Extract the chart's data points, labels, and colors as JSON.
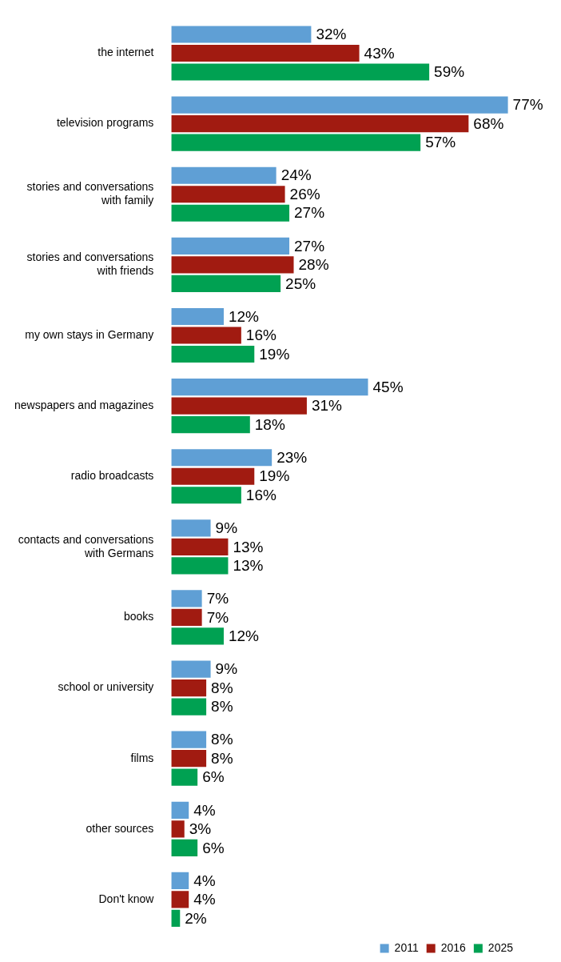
{
  "chart_data": {
    "type": "bar",
    "orientation": "horizontal",
    "legend": "bottom right",
    "grid": false,
    "tick_labels": "y",
    "categories": [
      "the internet",
      "television programs",
      "stories and conversations with family",
      "stories and conversations with friends",
      "my own stays in Germany",
      "newspapers and magazines",
      "radio broadcasts",
      "contacts and conversations with Germans",
      "books",
      "school or university",
      "films",
      "other sources",
      "Don't know"
    ],
    "series": [
      {
        "name": "2011",
        "color": "#5f9fd5",
        "values": [
          32,
          77,
          24,
          27,
          12,
          45,
          23,
          9,
          7,
          9,
          8,
          4,
          4
        ],
        "value_labels": [
          "32%",
          "77%",
          "24%",
          "27%",
          "12%",
          "45%",
          "23%",
          "9%",
          "7%",
          "9%",
          "8%",
          "4%",
          "4%"
        ]
      },
      {
        "name": "2016",
        "color": "#a11b11",
        "values": [
          43,
          68,
          26,
          28,
          16,
          31,
          19,
          13,
          7,
          8,
          8,
          3,
          4
        ],
        "value_labels": [
          "43%",
          "68%",
          "26%",
          "28%",
          "16%",
          "31%",
          "19%",
          "13%",
          "7%",
          "8%",
          "8%",
          "3%",
          "4%"
        ]
      },
      {
        "name": "2025",
        "color": "#00a152",
        "values": [
          59,
          57,
          27,
          25,
          19,
          18,
          16,
          13,
          12,
          8,
          6,
          6,
          2
        ],
        "value_labels": [
          "59%",
          "57%",
          "27%",
          "25%",
          "19%",
          "18%",
          "16%",
          "13%",
          "12%",
          "8%",
          "6%",
          "6%",
          "2%"
        ]
      }
    ]
  }
}
